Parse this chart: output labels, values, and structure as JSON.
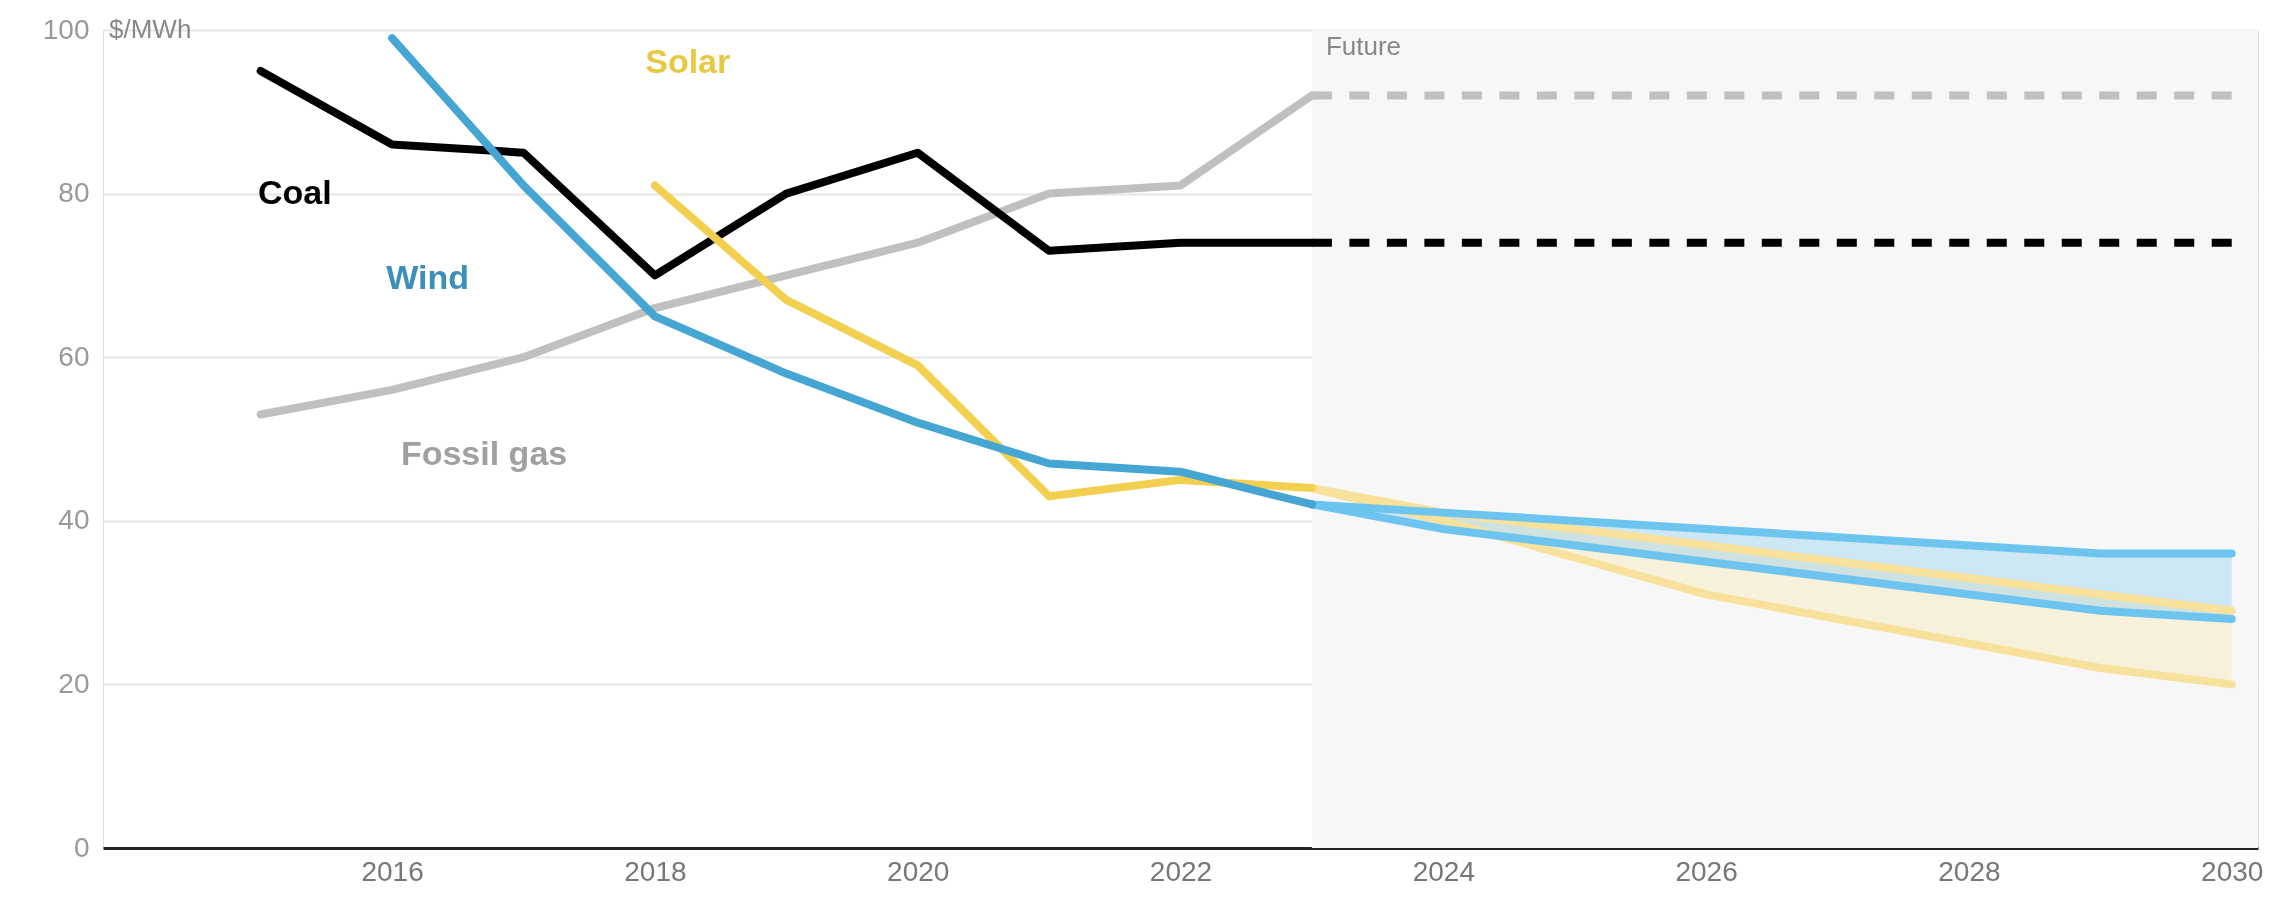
{
  "chart_data": {
    "type": "line",
    "ylabel": "$/MWh",
    "xlim": [
      2013.8,
      2030.2
    ],
    "xticks": [
      2016,
      2018,
      2020,
      2022,
      2024,
      2026,
      2028,
      2030
    ],
    "ylim": [
      0,
      100
    ],
    "yticks": [
      0,
      20,
      40,
      60,
      80,
      100
    ],
    "grid": "y",
    "legend": false,
    "marker": "none",
    "bands": [
      {
        "axis": "x",
        "from": 2023,
        "to": 2030.2,
        "label": "Future",
        "color": "#f7f7f7"
      }
    ],
    "series": [
      {
        "name": "Fossil gas",
        "color": "#c0c0c0",
        "line_style": "solid",
        "x": [
          2015,
          2016,
          2017,
          2018,
          2019,
          2020,
          2021,
          2022,
          2023
        ],
        "values": [
          53,
          56,
          60,
          66,
          70,
          74,
          80,
          81,
          92
        ]
      },
      {
        "color": "#c0c0c0",
        "line_style": "dashed",
        "x": [
          2023,
          2030
        ],
        "values": [
          92,
          92
        ]
      },
      {
        "name": "Coal",
        "color": "#000000",
        "line_style": "solid",
        "x": [
          2015,
          2016,
          2017,
          2018,
          2019,
          2020,
          2021,
          2022,
          2023
        ],
        "values": [
          95,
          86,
          85,
          70,
          80,
          85,
          73,
          74,
          74
        ]
      },
      {
        "color": "#000000",
        "line_style": "dashed",
        "x": [
          2023,
          2030
        ],
        "values": [
          74,
          74
        ]
      },
      {
        "color": "#f8e19a",
        "line_style": "solid",
        "x": [
          2023,
          2024,
          2026,
          2029,
          2030
        ],
        "values": [
          44,
          41,
          37,
          31,
          29
        ]
      },
      {
        "color": "#f8e19a",
        "line_style": "solid",
        "x": [
          2023,
          2024,
          2026,
          2029,
          2030
        ],
        "values": [
          44,
          40,
          31,
          22,
          20
        ],
        "lower": [
          44,
          40,
          31,
          22,
          20
        ],
        "upper": [
          44,
          41,
          37,
          31,
          29
        ]
      },
      {
        "color": "#6cc4ef",
        "line_style": "solid",
        "x": [
          2023,
          2024,
          2026,
          2029,
          2030
        ],
        "values": [
          42,
          41,
          39,
          36,
          36
        ]
      },
      {
        "color": "#6cc4ef",
        "line_style": "solid",
        "x": [
          2023,
          2024,
          2026,
          2029,
          2030
        ],
        "values": [
          42,
          39,
          35,
          29,
          28
        ],
        "lower": [
          42,
          39,
          35,
          29,
          28
        ],
        "upper": [
          42,
          41,
          39,
          36,
          36
        ]
      },
      {
        "name": "Solar",
        "color": "#f2cf4f",
        "line_style": "solid",
        "x": [
          2018,
          2019,
          2020,
          2021,
          2022,
          2023
        ],
        "values": [
          81,
          67,
          59,
          43,
          45,
          44
        ]
      },
      {
        "name": "Wind",
        "color": "#45a6d4",
        "line_style": "solid",
        "x": [
          2016,
          2017,
          2018,
          2019,
          2020,
          2021,
          2022,
          2023
        ],
        "values": [
          99,
          81,
          65,
          58,
          52,
          47,
          46,
          42
        ]
      }
    ]
  }
}
